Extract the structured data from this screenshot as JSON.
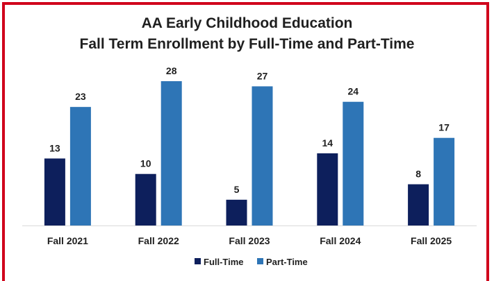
{
  "chart_data": {
    "type": "bar",
    "title_line1": "AA Early Childhood Education",
    "title_line2": "Fall Term Enrollment by Full-Time and Part-Time",
    "categories": [
      "Fall 2021",
      "Fall 2022",
      "Fall 2023",
      "Fall 2024",
      "Fall 2025"
    ],
    "series": [
      {
        "name": "Full-Time",
        "color": "#0d1f5c",
        "values": [
          13,
          10,
          5,
          14,
          8
        ]
      },
      {
        "name": "Part-Time",
        "color": "#2e75b6",
        "values": [
          23,
          28,
          27,
          24,
          17
        ]
      }
    ],
    "ylim": [
      0,
      28
    ],
    "grid": false,
    "legend": "bottom",
    "frame_color": "#d0021b"
  }
}
